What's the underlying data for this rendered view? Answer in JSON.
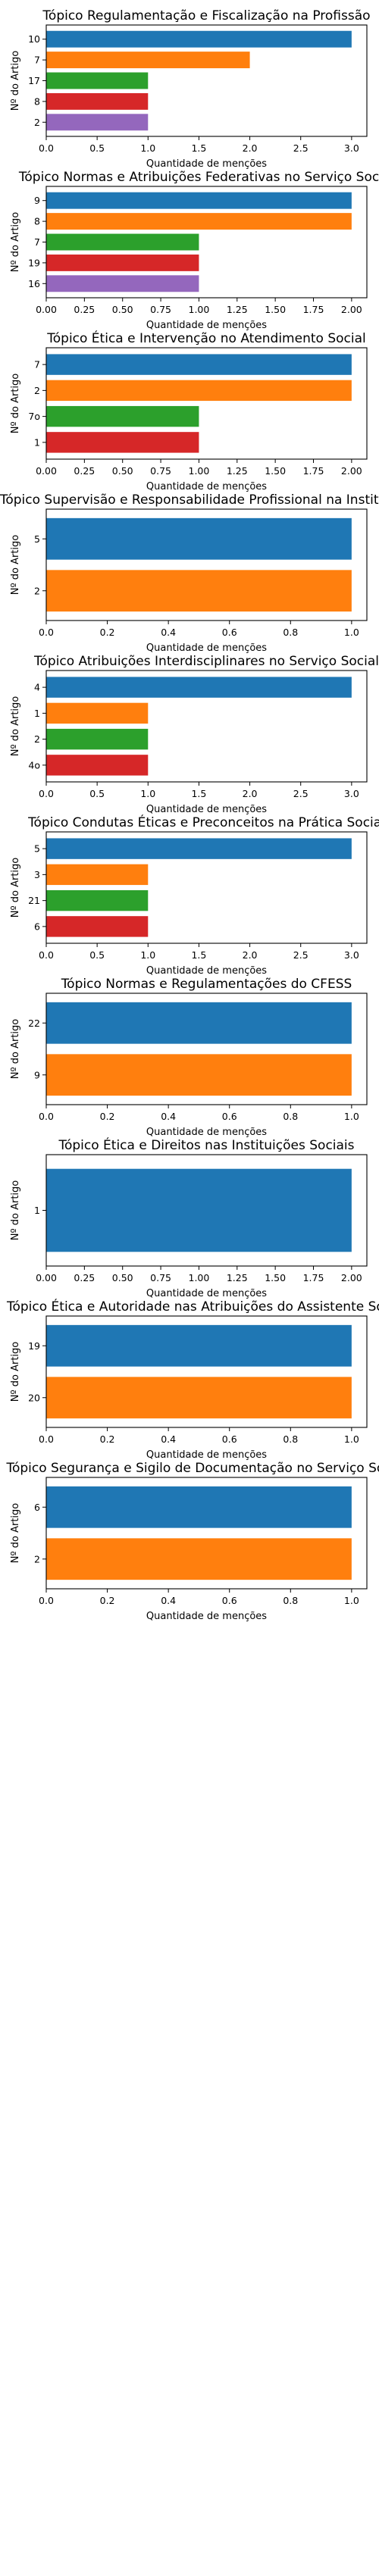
{
  "colors": [
    "#1f77b4",
    "#ff7f0e",
    "#2ca02c",
    "#d62728",
    "#9467bd"
  ],
  "chart_data": [
    {
      "type": "bar",
      "orientation": "horizontal",
      "title": "Tópico Regulamentação e Fiscalização na Profissão",
      "xlabel": "Quantidade de menções",
      "ylabel": "Nº do Artigo",
      "categories": [
        "10",
        "7",
        "17",
        "8",
        "2"
      ],
      "values": [
        3,
        2,
        1,
        1,
        1
      ],
      "xlim": [
        0,
        3.15
      ],
      "xticks": [
        "0.0",
        "0.5",
        "1.0",
        "1.5",
        "2.0",
        "2.5",
        "3.0"
      ],
      "grid": false,
      "legend": "none"
    },
    {
      "type": "bar",
      "orientation": "horizontal",
      "title": "Tópico Normas e Atribuições Federativas no Serviço Social",
      "xlabel": "Quantidade de menções",
      "ylabel": "Nº do Artigo",
      "categories": [
        "9",
        "8",
        "7",
        "19",
        "16"
      ],
      "values": [
        2,
        2,
        1,
        1,
        1
      ],
      "xlim": [
        0,
        2.1
      ],
      "xticks": [
        "0.00",
        "0.25",
        "0.50",
        "0.75",
        "1.00",
        "1.25",
        "1.50",
        "1.75",
        "2.00"
      ],
      "grid": false,
      "legend": "none"
    },
    {
      "type": "bar",
      "orientation": "horizontal",
      "title": "Tópico Ética e Intervenção no Atendimento Social",
      "xlabel": "Quantidade de menções",
      "ylabel": "Nº do Artigo",
      "categories": [
        "7",
        "2",
        "7o",
        "1"
      ],
      "values": [
        2,
        2,
        1,
        1
      ],
      "xlim": [
        0,
        2.1
      ],
      "xticks": [
        "0.00",
        "0.25",
        "0.50",
        "0.75",
        "1.00",
        "1.25",
        "1.50",
        "1.75",
        "2.00"
      ],
      "grid": false,
      "legend": "none"
    },
    {
      "type": "bar",
      "orientation": "horizontal",
      "title": "Tópico Supervisão e Responsabilidade Profissional na Instituição",
      "xlabel": "Quantidade de menções",
      "ylabel": "Nº do Artigo",
      "categories": [
        "5",
        "2"
      ],
      "values": [
        1,
        1
      ],
      "xlim": [
        0,
        1.05
      ],
      "xticks": [
        "0.0",
        "0.2",
        "0.4",
        "0.6",
        "0.8",
        "1.0"
      ],
      "grid": false,
      "legend": "none"
    },
    {
      "type": "bar",
      "orientation": "horizontal",
      "title": "Tópico Atribuições Interdisciplinares no Serviço Social",
      "xlabel": "Quantidade de menções",
      "ylabel": "Nº do Artigo",
      "categories": [
        "4",
        "1",
        "2",
        "4o"
      ],
      "values": [
        3,
        1,
        1,
        1
      ],
      "xlim": [
        0,
        3.15
      ],
      "xticks": [
        "0.0",
        "0.5",
        "1.0",
        "1.5",
        "2.0",
        "2.5",
        "3.0"
      ],
      "grid": false,
      "legend": "none"
    },
    {
      "type": "bar",
      "orientation": "horizontal",
      "title": "Tópico Condutas Éticas e Preconceitos na Prática Social",
      "xlabel": "Quantidade de menções",
      "ylabel": "Nº do Artigo",
      "categories": [
        "5",
        "3",
        "21",
        "6"
      ],
      "values": [
        3,
        1,
        1,
        1
      ],
      "xlim": [
        0,
        3.15
      ],
      "xticks": [
        "0.0",
        "0.5",
        "1.0",
        "1.5",
        "2.0",
        "2.5",
        "3.0"
      ],
      "grid": false,
      "legend": "none"
    },
    {
      "type": "bar",
      "orientation": "horizontal",
      "title": "Tópico Normas e Regulamentações do CFESS",
      "xlabel": "Quantidade de menções",
      "ylabel": "Nº do Artigo",
      "categories": [
        "22",
        "9"
      ],
      "values": [
        1,
        1
      ],
      "xlim": [
        0,
        1.05
      ],
      "xticks": [
        "0.0",
        "0.2",
        "0.4",
        "0.6",
        "0.8",
        "1.0"
      ],
      "grid": false,
      "legend": "none"
    },
    {
      "type": "bar",
      "orientation": "horizontal",
      "title": "Tópico Ética e Direitos nas Instituições Sociais",
      "xlabel": "Quantidade de menções",
      "ylabel": "Nº do Artigo",
      "categories": [
        "1"
      ],
      "values": [
        2
      ],
      "xlim": [
        0,
        2.1
      ],
      "xticks": [
        "0.00",
        "0.25",
        "0.50",
        "0.75",
        "1.00",
        "1.25",
        "1.50",
        "1.75",
        "2.00"
      ],
      "grid": false,
      "legend": "none"
    },
    {
      "type": "bar",
      "orientation": "horizontal",
      "title": "Tópico Ética e Autoridade nas Atribuições do Assistente Social",
      "xlabel": "Quantidade de menções",
      "ylabel": "Nº do Artigo",
      "categories": [
        "19",
        "20"
      ],
      "values": [
        1,
        1
      ],
      "xlim": [
        0,
        1.05
      ],
      "xticks": [
        "0.0",
        "0.2",
        "0.4",
        "0.6",
        "0.8",
        "1.0"
      ],
      "grid": false,
      "legend": "none"
    },
    {
      "type": "bar",
      "orientation": "horizontal",
      "title": "Tópico Segurança e Sigilo de Documentação no Serviço Social",
      "xlabel": "Quantidade de menções",
      "ylabel": "Nº do Artigo",
      "categories": [
        "6",
        "2"
      ],
      "values": [
        1,
        1
      ],
      "xlim": [
        0,
        1.05
      ],
      "xticks": [
        "0.0",
        "0.2",
        "0.4",
        "0.6",
        "0.8",
        "1.0"
      ],
      "grid": false,
      "legend": "none"
    }
  ]
}
